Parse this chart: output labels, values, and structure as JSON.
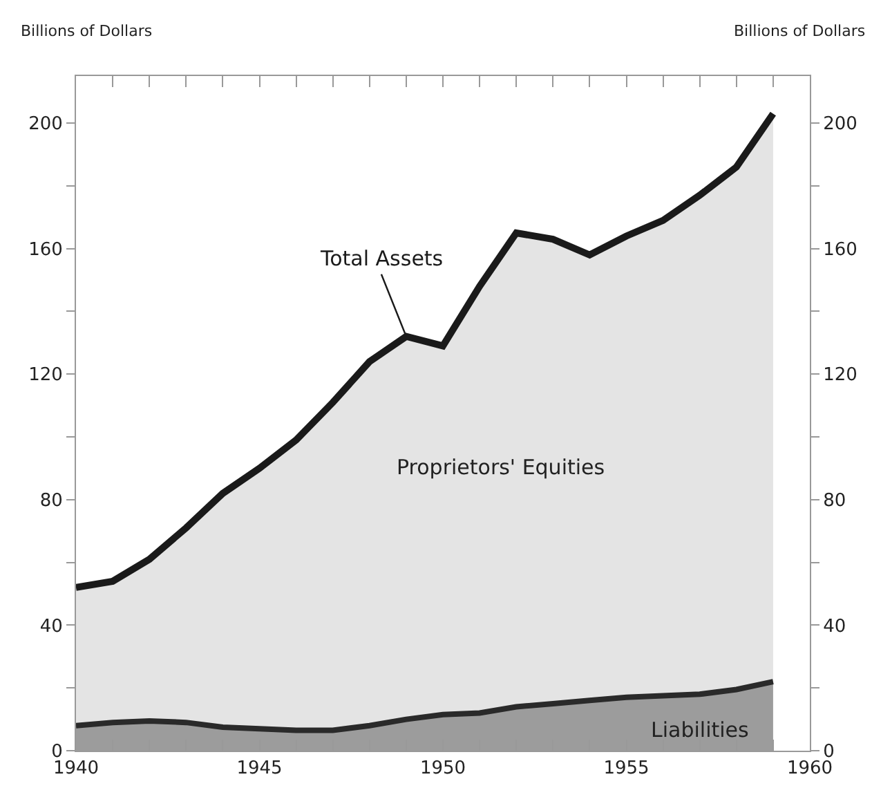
{
  "chart_data": {
    "type": "area",
    "ylabel": "Billions of Dollars",
    "y2label": "Billions of Dollars",
    "x": [
      1940,
      1941,
      1942,
      1943,
      1944,
      1945,
      1946,
      1947,
      1948,
      1949,
      1950,
      1951,
      1952,
      1953,
      1954,
      1955,
      1956,
      1957,
      1958,
      1959
    ],
    "series": [
      {
        "name": "Liabilities",
        "color": "#9c9c9c",
        "values": [
          8,
          9,
          9.5,
          9,
          7.5,
          7,
          6.5,
          6.5,
          8,
          10,
          11.5,
          12,
          14,
          15,
          16,
          17,
          17.5,
          18,
          19.5,
          22
        ]
      },
      {
        "name": "Total Assets",
        "color": "#1a1a1a",
        "values": [
          52,
          54,
          61,
          71,
          82,
          90,
          99,
          111,
          124,
          132,
          129,
          148,
          165,
          163,
          158,
          164,
          169,
          177,
          186,
          203
        ]
      }
    ],
    "annotations": [
      "Proprietors' Equities"
    ],
    "xlim": [
      1940,
      1960
    ],
    "xticks": [
      1940,
      {
        "value": 1941,
        "label": null
      },
      {
        "value": 1942,
        "label": null
      },
      {
        "value": 1943,
        "label": null
      },
      {
        "value": 1944,
        "label": null
      },
      1945,
      {
        "value": 1946,
        "label": null
      },
      {
        "value": 1947,
        "label": null
      },
      {
        "value": 1948,
        "label": null
      },
      {
        "value": 1949,
        "label": null
      },
      1950,
      {
        "value": 1951,
        "label": null
      },
      {
        "value": 1952,
        "label": null
      },
      {
        "value": 1953,
        "label": null
      },
      {
        "value": 1954,
        "label": null
      },
      1955,
      {
        "value": 1956,
        "label": null
      },
      {
        "value": 1957,
        "label": null
      },
      {
        "value": 1958,
        "label": null
      },
      {
        "value": 1959,
        "label": null
      },
      1960
    ],
    "ylim": [
      0,
      215
    ],
    "yticks": [
      0,
      {
        "value": 20,
        "label": null
      },
      40,
      {
        "value": 60,
        "label": null
      },
      80,
      {
        "value": 100,
        "label": null
      },
      120,
      {
        "value": 140,
        "label": null
      },
      160,
      {
        "value": 180,
        "label": null
      },
      200
    ],
    "y2lim": [
      0,
      215
    ],
    "y2ticks": [
      0,
      {
        "value": 20,
        "label": null
      },
      40,
      {
        "value": 60,
        "label": null
      },
      80,
      {
        "value": 100,
        "label": null
      },
      120,
      {
        "value": 140,
        "label": null
      },
      160,
      {
        "value": 180,
        "label": null
      },
      200
    ],
    "legend": false
  }
}
